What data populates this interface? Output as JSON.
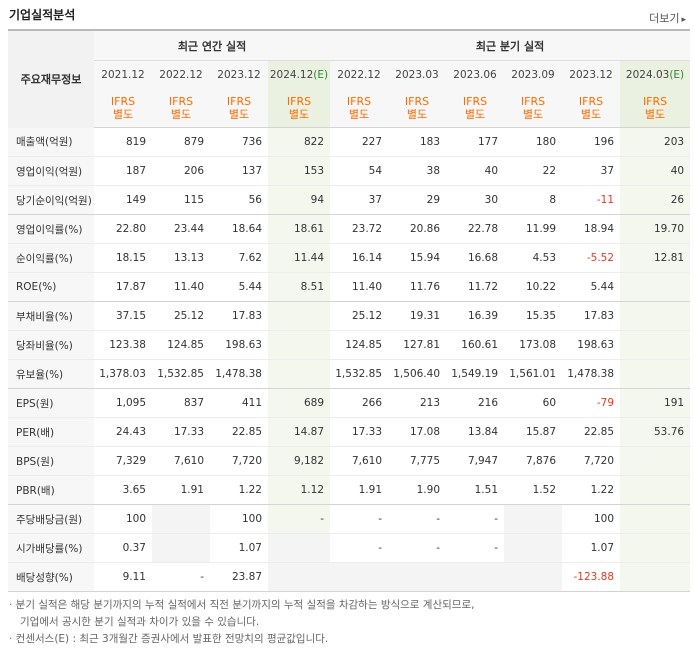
{
  "title": "기업실적분석",
  "more_label": "더보기",
  "more_arrow": "▸",
  "header": {
    "corner_label": "주요재무정보",
    "annual_label": "최근 연간 실적",
    "quarterly_label": "최근 분기 실적",
    "periods": [
      "2021.12",
      "2022.12",
      "2023.12",
      "2024.12",
      "2022.12",
      "2023.03",
      "2023.06",
      "2023.09",
      "2023.12",
      "2024.03"
    ],
    "estimate_mark": "(E)",
    "ifrs_line1": "IFRS",
    "ifrs_line2": "별도"
  },
  "rows": [
    {
      "label": "매출액(억원)",
      "values": [
        "819",
        "879",
        "736",
        "822",
        "227",
        "183",
        "177",
        "180",
        "196",
        "203"
      ]
    },
    {
      "label": "영업이익(억원)",
      "values": [
        "187",
        "206",
        "137",
        "153",
        "54",
        "38",
        "40",
        "22",
        "37",
        "40"
      ]
    },
    {
      "label": "당기순이익(억원)",
      "values": [
        "149",
        "115",
        "56",
        "94",
        "37",
        "29",
        "30",
        "8",
        "-11",
        "26"
      ]
    },
    {
      "label": "영업이익률(%)",
      "values": [
        "22.80",
        "23.44",
        "18.64",
        "18.61",
        "23.72",
        "20.86",
        "22.78",
        "11.99",
        "18.94",
        "19.70"
      ]
    },
    {
      "label": "순이익률(%)",
      "values": [
        "18.15",
        "13.13",
        "7.62",
        "11.44",
        "16.14",
        "15.94",
        "16.68",
        "4.53",
        "-5.52",
        "12.81"
      ]
    },
    {
      "label": "ROE(%)",
      "values": [
        "17.87",
        "11.40",
        "5.44",
        "8.51",
        "11.40",
        "11.76",
        "11.72",
        "10.22",
        "5.44",
        ""
      ]
    },
    {
      "label": "부채비율(%)",
      "values": [
        "37.15",
        "25.12",
        "17.83",
        "",
        "25.12",
        "19.31",
        "16.39",
        "15.35",
        "17.83",
        ""
      ]
    },
    {
      "label": "당좌비율(%)",
      "values": [
        "123.38",
        "124.85",
        "198.63",
        "",
        "124.85",
        "127.81",
        "160.61",
        "173.08",
        "198.63",
        ""
      ]
    },
    {
      "label": "유보율(%)",
      "values": [
        "1,378.03",
        "1,532.85",
        "1,478.38",
        "",
        "1,532.85",
        "1,506.40",
        "1,549.19",
        "1,561.01",
        "1,478.38",
        ""
      ]
    },
    {
      "label": "EPS(원)",
      "values": [
        "1,095",
        "837",
        "411",
        "689",
        "266",
        "213",
        "216",
        "60",
        "-79",
        "191"
      ]
    },
    {
      "label": "PER(배)",
      "values": [
        "24.43",
        "17.33",
        "22.85",
        "14.87",
        "17.33",
        "17.08",
        "13.84",
        "15.87",
        "22.85",
        "53.76"
      ]
    },
    {
      "label": "BPS(원)",
      "values": [
        "7,329",
        "7,610",
        "7,720",
        "9,182",
        "7,610",
        "7,775",
        "7,947",
        "7,876",
        "7,720",
        ""
      ]
    },
    {
      "label": "PBR(배)",
      "values": [
        "3.65",
        "1.91",
        "1.22",
        "1.12",
        "1.91",
        "1.90",
        "1.51",
        "1.52",
        "1.22",
        ""
      ]
    },
    {
      "label": "주당배당금(원)",
      "values": [
        "100",
        "",
        "100",
        "-",
        "-",
        "-",
        "-",
        "",
        "100",
        ""
      ]
    },
    {
      "label": "시가배당률(%)",
      "values": [
        "0.37",
        "",
        "1.07",
        "",
        "-",
        "-",
        "-",
        "",
        "1.07",
        ""
      ]
    },
    {
      "label": "배당성향(%)",
      "values": [
        "9.11",
        "-",
        "23.87",
        "",
        "",
        "",
        "",
        "",
        "-123.88",
        ""
      ]
    }
  ],
  "notes": [
    "· 분기 실적은 해당 분기까지의 누적 실적에서 직전 분기까지의 누적 실적을 차감하는 방식으로 계산되므로,",
    "기업에서 공시한 분기 실적과 차이가 있을 수 있습니다.",
    "· 컨센서스(E) : 최근 3개월간 증권사에서 발표한 전망치의 평균값입니다."
  ]
}
